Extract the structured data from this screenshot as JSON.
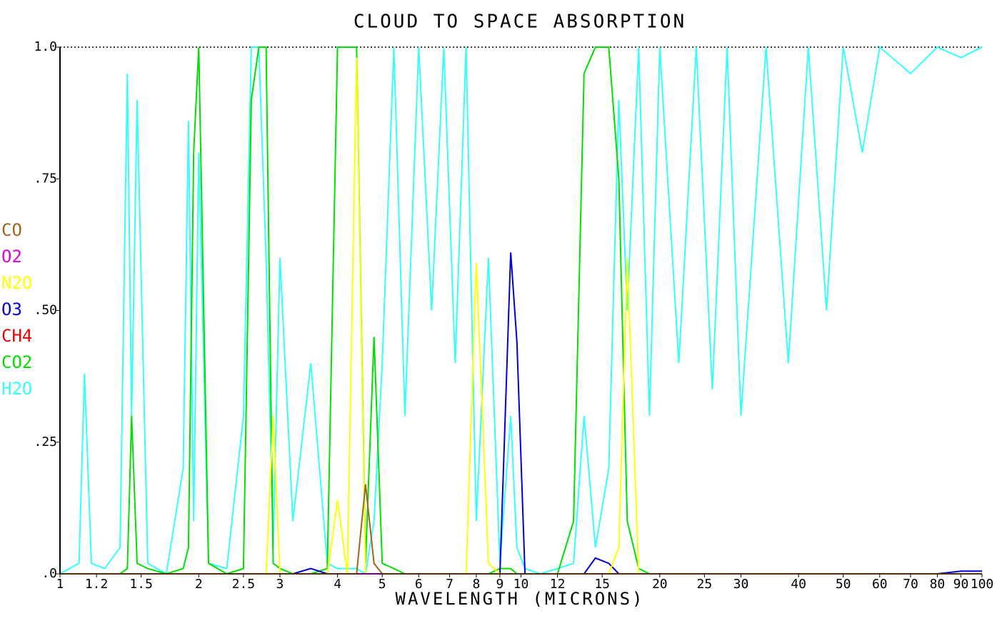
{
  "chart_data": {
    "type": "line",
    "title": "CLOUD TO SPACE ABSORPTION",
    "x_label": "WAVELENGTH (MICRONS)",
    "xscale": "log",
    "xlim": [
      1,
      100
    ],
    "xticks": [
      1,
      1.2,
      1.5,
      2,
      2.5,
      3,
      4,
      5,
      6,
      7,
      8,
      9,
      10,
      12,
      15,
      20,
      25,
      30,
      40,
      50,
      60,
      70,
      80,
      90,
      100
    ],
    "ylim": [
      0,
      1
    ],
    "yticks": [
      {
        "value": 0,
        "label": ".0"
      },
      {
        "value": 0.25,
        "label": ".25"
      },
      {
        "value": 0.5,
        "label": ".50"
      },
      {
        "value": 0.75,
        "label": ".75"
      },
      {
        "value": 1,
        "label": "1.0"
      }
    ],
    "x": [
      1.0,
      1.1,
      1.13,
      1.17,
      1.25,
      1.35,
      1.4,
      1.43,
      1.47,
      1.55,
      1.7,
      1.85,
      1.9,
      1.95,
      2.0,
      2.1,
      2.3,
      2.5,
      2.6,
      2.7,
      2.8,
      2.9,
      3.0,
      3.2,
      3.5,
      3.8,
      4.0,
      4.2,
      4.4,
      4.6,
      4.8,
      5.0,
      5.3,
      5.6,
      6.0,
      6.4,
      6.8,
      7.2,
      7.6,
      8.0,
      8.5,
      9.0,
      9.5,
      9.8,
      10.2,
      11.0,
      12.0,
      13.0,
      13.7,
      14.5,
      15.5,
      16.3,
      17.0,
      18.0,
      19.0,
      20.0,
      22.0,
      24.0,
      26.0,
      28.0,
      30.0,
      34.0,
      38.0,
      42.0,
      46.0,
      50.0,
      55.0,
      60.0,
      70.0,
      80.0,
      90.0,
      100.0
    ],
    "series": [
      {
        "name": "CO",
        "color": "#a0641e",
        "values": [
          0,
          0,
          0,
          0,
          0,
          0,
          0,
          0,
          0,
          0,
          0,
          0,
          0,
          0,
          0,
          0,
          0,
          0,
          0,
          0,
          0,
          0,
          0,
          0,
          0,
          0,
          0,
          0,
          0,
          0.17,
          0.02,
          0,
          0,
          0,
          0,
          0,
          0,
          0,
          0,
          0,
          0,
          0,
          0,
          0,
          0,
          0,
          0,
          0,
          0,
          0,
          0,
          0,
          0,
          0,
          0,
          0,
          0,
          0,
          0,
          0,
          0,
          0,
          0,
          0,
          0,
          0,
          0,
          0,
          0,
          0,
          0,
          0
        ]
      },
      {
        "name": "O2",
        "color": "#e000e0",
        "values": [
          0,
          0,
          0,
          0,
          0,
          0,
          0,
          0,
          0,
          0,
          0,
          0,
          0,
          0,
          0,
          0,
          0,
          0,
          0,
          0,
          0,
          0,
          0,
          0,
          0,
          0,
          0,
          0,
          0,
          0,
          0,
          0,
          0,
          0,
          0,
          0,
          0,
          0,
          0,
          0,
          0,
          0,
          0,
          0,
          0,
          0,
          0,
          0,
          0,
          0,
          0,
          0,
          0,
          0,
          0,
          0,
          0,
          0,
          0,
          0,
          0,
          0,
          0,
          0,
          0,
          0,
          0,
          0,
          0,
          0,
          0,
          0
        ]
      },
      {
        "name": "N2O",
        "color": "#ffff00",
        "values": [
          0,
          0,
          0,
          0,
          0,
          0,
          0,
          0,
          0,
          0,
          0,
          0,
          0,
          0,
          0,
          0,
          0,
          0,
          0,
          0,
          0,
          0.3,
          0,
          0,
          0,
          0,
          0.14,
          0,
          0.98,
          0,
          0,
          0,
          0,
          0,
          0,
          0,
          0,
          0,
          0,
          0.59,
          0.02,
          0,
          0,
          0,
          0,
          0,
          0,
          0,
          0,
          0,
          0,
          0.05,
          0.6,
          0,
          0,
          0,
          0,
          0,
          0,
          0,
          0,
          0,
          0,
          0,
          0,
          0,
          0,
          0,
          0,
          0,
          0,
          0
        ]
      },
      {
        "name": "O3",
        "color": "#0000dd",
        "values": [
          0,
          0,
          0,
          0,
          0,
          0,
          0,
          0,
          0,
          0,
          0,
          0,
          0,
          0,
          0,
          0,
          0,
          0,
          0,
          0,
          0,
          0,
          0,
          0,
          0.01,
          0,
          0,
          0,
          0,
          0,
          0,
          0,
          0,
          0,
          0,
          0,
          0,
          0,
          0,
          0,
          0,
          0,
          0.61,
          0.44,
          0,
          0,
          0,
          0,
          0,
          0.03,
          0.02,
          0,
          0,
          0,
          0,
          0,
          0,
          0,
          0,
          0,
          0,
          0,
          0,
          0,
          0,
          0,
          0,
          0,
          0,
          0,
          0.005,
          0.005
        ]
      },
      {
        "name": "CH4",
        "color": "#ee0000",
        "values": [
          0,
          0,
          0,
          0,
          0,
          0,
          0,
          0,
          0,
          0,
          0,
          0,
          0,
          0,
          0,
          0,
          0,
          0,
          0,
          0,
          0,
          0,
          0,
          0,
          0,
          0,
          0,
          0,
          0,
          0,
          0,
          0,
          0,
          0,
          0,
          0,
          0,
          0,
          0,
          0,
          0,
          0,
          0,
          0,
          0,
          0,
          0,
          0,
          0,
          0,
          0,
          0,
          0,
          0,
          0,
          0,
          0,
          0,
          0,
          0,
          0,
          0,
          0,
          0,
          0,
          0,
          0,
          0,
          0,
          0,
          0,
          0
        ]
      },
      {
        "name": "CO2",
        "color": "#00e000",
        "values": [
          0,
          0,
          0,
          0,
          0,
          0,
          0.01,
          0.3,
          0.02,
          0.01,
          0,
          0.01,
          0.05,
          0.8,
          1.0,
          0.02,
          0,
          0.01,
          0.9,
          1.0,
          1.0,
          0.02,
          0.01,
          0,
          0,
          0.01,
          1.0,
          1.0,
          1.0,
          0.02,
          0.45,
          0.02,
          0.01,
          0,
          0,
          0,
          0,
          0,
          0,
          0,
          0,
          0.01,
          0.01,
          0,
          0,
          0,
          0,
          0.1,
          0.95,
          1.0,
          1.0,
          0.75,
          0.1,
          0.01,
          0,
          0,
          0,
          0,
          0,
          0,
          0,
          0,
          0,
          0,
          0,
          0,
          0,
          0,
          0,
          0,
          0,
          0
        ]
      },
      {
        "name": "H2O",
        "color": "#33ffff",
        "values": [
          0,
          0.02,
          0.38,
          0.02,
          0.01,
          0.05,
          0.95,
          0.3,
          0.9,
          0.02,
          0,
          0.2,
          0.86,
          0.1,
          0.8,
          0.02,
          0.01,
          0.3,
          1.0,
          1.0,
          0.6,
          0.05,
          0.6,
          0.1,
          0.4,
          0.02,
          0.01,
          0.01,
          0.01,
          0,
          0.1,
          0.4,
          1.0,
          0.3,
          1.0,
          0.5,
          1.0,
          0.4,
          1.0,
          0.1,
          0.6,
          0.02,
          0.3,
          0.05,
          0.01,
          0,
          0.01,
          0.02,
          0.3,
          0.05,
          0.2,
          0.9,
          0.5,
          1.0,
          0.3,
          1.0,
          0.4,
          1.0,
          0.35,
          1.0,
          0.3,
          1.0,
          0.4,
          1.0,
          0.5,
          1.0,
          0.8,
          1.0,
          0.95,
          1.0,
          0.98,
          1.0
        ]
      }
    ]
  }
}
